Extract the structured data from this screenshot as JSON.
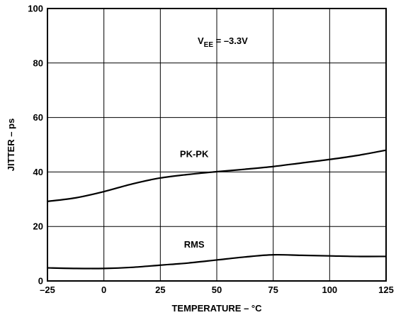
{
  "chart_data": {
    "type": "line",
    "xlabel": "TEMPERATURE – °C",
    "ylabel": "JITTER – ps",
    "xlim": [
      -25,
      125
    ],
    "ylim": [
      0,
      100
    ],
    "xticks": [
      -25,
      0,
      25,
      50,
      75,
      100,
      125
    ],
    "yticks": [
      0,
      20,
      40,
      60,
      80,
      100
    ],
    "xtick_labels": [
      "–25",
      "0",
      "25",
      "50",
      "75",
      "100",
      "125"
    ],
    "ytick_labels": [
      "0",
      "20",
      "40",
      "60",
      "80",
      "100"
    ],
    "grid": true,
    "annotation": {
      "main": "V",
      "sub": "EE",
      "rest": " = –3.3V"
    },
    "series": [
      {
        "name": "PK-PK",
        "x": [
          -25,
          -12.5,
          0,
          12.5,
          25,
          37.5,
          50,
          62.5,
          75,
          87.5,
          100,
          112.5,
          125
        ],
        "y": [
          29.2,
          30.5,
          32.8,
          35.6,
          37.8,
          39.1,
          40.1,
          41.0,
          42.0,
          43.3,
          44.6,
          46.1,
          48.0
        ]
      },
      {
        "name": "RMS",
        "x": [
          -25,
          -12.5,
          0,
          12.5,
          25,
          37.5,
          50,
          62.5,
          75,
          87.5,
          100,
          112.5,
          125
        ],
        "y": [
          4.8,
          4.6,
          4.6,
          5.0,
          5.8,
          6.6,
          7.7,
          8.8,
          9.6,
          9.4,
          9.2,
          9.0,
          9.0
        ]
      }
    ]
  }
}
